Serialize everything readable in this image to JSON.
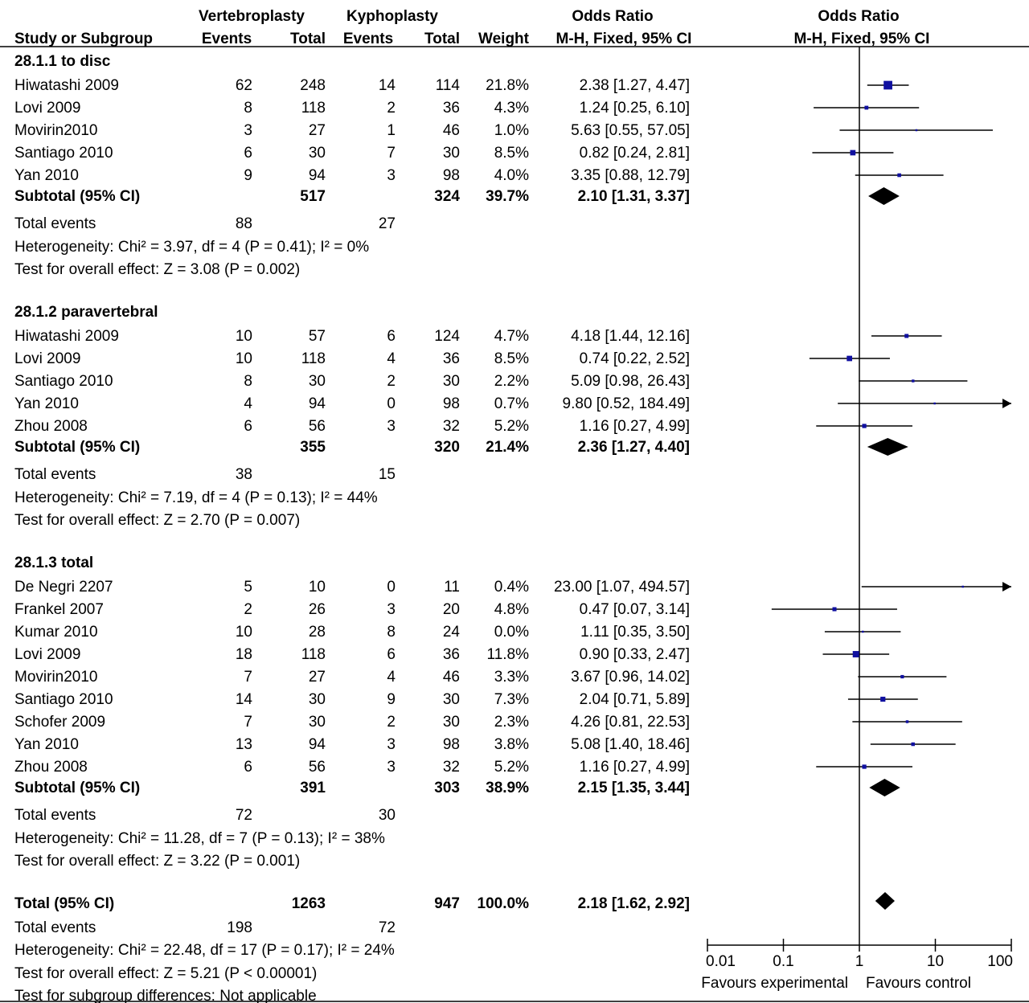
{
  "header": {
    "group1": "Vertebroplasty",
    "group2": "Kyphoplasty",
    "or_col": "Odds Ratio",
    "plot_col": "Odds Ratio",
    "study_col": "Study or Subgroup",
    "events1": "Events",
    "total1": "Total",
    "events2": "Events",
    "total2": "Total",
    "weight": "Weight",
    "method": "M-H, Fixed, 95% CI",
    "plot_method": "M-H, Fixed, 95% CI"
  },
  "chart_data": {
    "type": "forest",
    "scale": "log",
    "xlim": [
      0.01,
      100
    ],
    "axis_ticks": [
      "0.01",
      "0.1",
      "1",
      "10",
      "100"
    ],
    "axis_left_label": "Favours experimental",
    "axis_right_label": "Favours control",
    "subgroups": [
      {
        "title": "28.1.1 to disc",
        "studies": [
          {
            "name": "Hiwatashi 2009",
            "e1": "62",
            "t1": "248",
            "e2": "14",
            "t2": "114",
            "weight": "21.8%",
            "ci_text": "2.38 [1.27, 4.47]",
            "or": 2.38,
            "lo": 1.27,
            "hi": 4.47
          },
          {
            "name": "Lovi 2009",
            "e1": "8",
            "t1": "118",
            "e2": "2",
            "t2": "36",
            "weight": "4.3%",
            "ci_text": "1.24 [0.25, 6.10]",
            "or": 1.24,
            "lo": 0.25,
            "hi": 6.1
          },
          {
            "name": "Movirin2010",
            "e1": "3",
            "t1": "27",
            "e2": "1",
            "t2": "46",
            "weight": "1.0%",
            "ci_text": "5.63 [0.55, 57.05]",
            "or": 5.63,
            "lo": 0.55,
            "hi": 57.05
          },
          {
            "name": "Santiago 2010",
            "e1": "6",
            "t1": "30",
            "e2": "7",
            "t2": "30",
            "weight": "8.5%",
            "ci_text": "0.82 [0.24, 2.81]",
            "or": 0.82,
            "lo": 0.24,
            "hi": 2.81
          },
          {
            "name": "Yan 2010",
            "e1": "9",
            "t1": "94",
            "e2": "3",
            "t2": "98",
            "weight": "4.0%",
            "ci_text": "3.35 [0.88, 12.79]",
            "or": 3.35,
            "lo": 0.88,
            "hi": 12.79
          }
        ],
        "subtotal": {
          "label": "Subtotal (95% CI)",
          "t1": "517",
          "t2": "324",
          "weight": "39.7%",
          "ci_text": "2.10 [1.31, 3.37]",
          "or": 2.1,
          "lo": 1.31,
          "hi": 3.37
        },
        "events_label": "Total events",
        "events1": "88",
        "events2": "27",
        "heterogeneity": "Heterogeneity: Chi² = 3.97, df = 4 (P = 0.41); I² = 0%",
        "overall": "Test for overall effect: Z = 3.08 (P = 0.002)"
      },
      {
        "title": "28.1.2 paravertebral",
        "studies": [
          {
            "name": "Hiwatashi 2009",
            "e1": "10",
            "t1": "57",
            "e2": "6",
            "t2": "124",
            "weight": "4.7%",
            "ci_text": "4.18 [1.44, 12.16]",
            "or": 4.18,
            "lo": 1.44,
            "hi": 12.16
          },
          {
            "name": "Lovi 2009",
            "e1": "10",
            "t1": "118",
            "e2": "4",
            "t2": "36",
            "weight": "8.5%",
            "ci_text": "0.74 [0.22, 2.52]",
            "or": 0.74,
            "lo": 0.22,
            "hi": 2.52
          },
          {
            "name": "Santiago 2010",
            "e1": "8",
            "t1": "30",
            "e2": "2",
            "t2": "30",
            "weight": "2.2%",
            "ci_text": "5.09 [0.98, 26.43]",
            "or": 5.09,
            "lo": 0.98,
            "hi": 26.43
          },
          {
            "name": "Yan 2010",
            "e1": "4",
            "t1": "94",
            "e2": "0",
            "t2": "98",
            "weight": "0.7%",
            "ci_text": "9.80 [0.52, 184.49]",
            "or": 9.8,
            "lo": 0.52,
            "hi": 184.49
          },
          {
            "name": "Zhou 2008",
            "e1": "6",
            "t1": "56",
            "e2": "3",
            "t2": "32",
            "weight": "5.2%",
            "ci_text": "1.16 [0.27, 4.99]",
            "or": 1.16,
            "lo": 0.27,
            "hi": 4.99
          }
        ],
        "subtotal": {
          "label": "Subtotal (95% CI)",
          "t1": "355",
          "t2": "320",
          "weight": "21.4%",
          "ci_text": "2.36 [1.27, 4.40]",
          "or": 2.36,
          "lo": 1.27,
          "hi": 4.4
        },
        "events_label": "Total events",
        "events1": "38",
        "events2": "15",
        "heterogeneity": "Heterogeneity: Chi² = 7.19, df = 4 (P = 0.13); I² = 44%",
        "overall": "Test for overall effect: Z = 2.70 (P = 0.007)"
      },
      {
        "title": "28.1.3 total",
        "studies": [
          {
            "name": "De Negri 2207",
            "e1": "5",
            "t1": "10",
            "e2": "0",
            "t2": "11",
            "weight": "0.4%",
            "ci_text": "23.00 [1.07, 494.57]",
            "or": 23.0,
            "lo": 1.07,
            "hi": 494.57
          },
          {
            "name": "Frankel 2007",
            "e1": "2",
            "t1": "26",
            "e2": "3",
            "t2": "20",
            "weight": "4.8%",
            "ci_text": "0.47 [0.07, 3.14]",
            "or": 0.47,
            "lo": 0.07,
            "hi": 3.14
          },
          {
            "name": "Kumar 2010",
            "e1": "10",
            "t1": "28",
            "e2": "8",
            "t2": "24",
            "weight": "0.0%",
            "ci_text": "1.11 [0.35, 3.50]",
            "or": 1.11,
            "lo": 0.35,
            "hi": 3.5
          },
          {
            "name": "Lovi 2009",
            "e1": "18",
            "t1": "118",
            "e2": "6",
            "t2": "36",
            "weight": "11.8%",
            "ci_text": "0.90 [0.33, 2.47]",
            "or": 0.9,
            "lo": 0.33,
            "hi": 2.47
          },
          {
            "name": "Movirin2010",
            "e1": "7",
            "t1": "27",
            "e2": "4",
            "t2": "46",
            "weight": "3.3%",
            "ci_text": "3.67 [0.96, 14.02]",
            "or": 3.67,
            "lo": 0.96,
            "hi": 14.02
          },
          {
            "name": "Santiago 2010",
            "e1": "14",
            "t1": "30",
            "e2": "9",
            "t2": "30",
            "weight": "7.3%",
            "ci_text": "2.04 [0.71, 5.89]",
            "or": 2.04,
            "lo": 0.71,
            "hi": 5.89
          },
          {
            "name": "Schofer 2009",
            "e1": "7",
            "t1": "30",
            "e2": "2",
            "t2": "30",
            "weight": "2.3%",
            "ci_text": "4.26 [0.81, 22.53]",
            "or": 4.26,
            "lo": 0.81,
            "hi": 22.53
          },
          {
            "name": "Yan 2010",
            "e1": "13",
            "t1": "94",
            "e2": "3",
            "t2": "98",
            "weight": "3.8%",
            "ci_text": "5.08 [1.40, 18.46]",
            "or": 5.08,
            "lo": 1.4,
            "hi": 18.46
          },
          {
            "name": "Zhou 2008",
            "e1": "6",
            "t1": "56",
            "e2": "3",
            "t2": "32",
            "weight": "5.2%",
            "ci_text": "1.16 [0.27, 4.99]",
            "or": 1.16,
            "lo": 0.27,
            "hi": 4.99
          }
        ],
        "subtotal": {
          "label": "Subtotal (95% CI)",
          "t1": "391",
          "t2": "303",
          "weight": "38.9%",
          "ci_text": "2.15 [1.35, 3.44]",
          "or": 2.15,
          "lo": 1.35,
          "hi": 3.44
        },
        "events_label": "Total events",
        "events1": "72",
        "events2": "30",
        "heterogeneity": "Heterogeneity: Chi² = 11.28, df = 7 (P = 0.13); I² = 38%",
        "overall": "Test for overall effect: Z = 3.22 (P = 0.001)"
      }
    ],
    "total": {
      "label": "Total (95% CI)",
      "t1": "1263",
      "t2": "947",
      "weight": "100.0%",
      "ci_text": "2.18 [1.62, 2.92]",
      "or": 2.18,
      "lo": 1.62,
      "hi": 2.92,
      "events_label": "Total events",
      "events1": "198",
      "events2": "72",
      "heterogeneity": "Heterogeneity: Chi² = 22.48, df = 17 (P = 0.17); I² = 24%",
      "overall": "Test for overall effect: Z = 5.21 (P < 0.00001)",
      "subgroup_diff": "Test for subgroup differences: Not applicable"
    }
  }
}
